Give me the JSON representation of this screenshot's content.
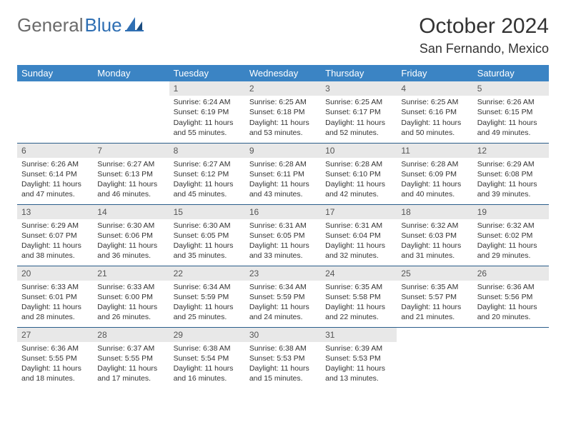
{
  "brand": {
    "part1": "General",
    "part2": "Blue"
  },
  "colors": {
    "header_bg": "#3b84c4",
    "header_text": "#ffffff",
    "daynum_bg": "#e8e8e8",
    "row_border": "#2a5d8a",
    "brand_gray": "#6b6b6b",
    "brand_blue": "#2f6fb3"
  },
  "title": "October 2024",
  "location": "San Fernando, Mexico",
  "weekdays": [
    "Sunday",
    "Monday",
    "Tuesday",
    "Wednesday",
    "Thursday",
    "Friday",
    "Saturday"
  ],
  "weeks": [
    [
      null,
      null,
      {
        "n": "1",
        "sr": "Sunrise: 6:24 AM",
        "ss": "Sunset: 6:19 PM",
        "d1": "Daylight: 11 hours",
        "d2": "and 55 minutes."
      },
      {
        "n": "2",
        "sr": "Sunrise: 6:25 AM",
        "ss": "Sunset: 6:18 PM",
        "d1": "Daylight: 11 hours",
        "d2": "and 53 minutes."
      },
      {
        "n": "3",
        "sr": "Sunrise: 6:25 AM",
        "ss": "Sunset: 6:17 PM",
        "d1": "Daylight: 11 hours",
        "d2": "and 52 minutes."
      },
      {
        "n": "4",
        "sr": "Sunrise: 6:25 AM",
        "ss": "Sunset: 6:16 PM",
        "d1": "Daylight: 11 hours",
        "d2": "and 50 minutes."
      },
      {
        "n": "5",
        "sr": "Sunrise: 6:26 AM",
        "ss": "Sunset: 6:15 PM",
        "d1": "Daylight: 11 hours",
        "d2": "and 49 minutes."
      }
    ],
    [
      {
        "n": "6",
        "sr": "Sunrise: 6:26 AM",
        "ss": "Sunset: 6:14 PM",
        "d1": "Daylight: 11 hours",
        "d2": "and 47 minutes."
      },
      {
        "n": "7",
        "sr": "Sunrise: 6:27 AM",
        "ss": "Sunset: 6:13 PM",
        "d1": "Daylight: 11 hours",
        "d2": "and 46 minutes."
      },
      {
        "n": "8",
        "sr": "Sunrise: 6:27 AM",
        "ss": "Sunset: 6:12 PM",
        "d1": "Daylight: 11 hours",
        "d2": "and 45 minutes."
      },
      {
        "n": "9",
        "sr": "Sunrise: 6:28 AM",
        "ss": "Sunset: 6:11 PM",
        "d1": "Daylight: 11 hours",
        "d2": "and 43 minutes."
      },
      {
        "n": "10",
        "sr": "Sunrise: 6:28 AM",
        "ss": "Sunset: 6:10 PM",
        "d1": "Daylight: 11 hours",
        "d2": "and 42 minutes."
      },
      {
        "n": "11",
        "sr": "Sunrise: 6:28 AM",
        "ss": "Sunset: 6:09 PM",
        "d1": "Daylight: 11 hours",
        "d2": "and 40 minutes."
      },
      {
        "n": "12",
        "sr": "Sunrise: 6:29 AM",
        "ss": "Sunset: 6:08 PM",
        "d1": "Daylight: 11 hours",
        "d2": "and 39 minutes."
      }
    ],
    [
      {
        "n": "13",
        "sr": "Sunrise: 6:29 AM",
        "ss": "Sunset: 6:07 PM",
        "d1": "Daylight: 11 hours",
        "d2": "and 38 minutes."
      },
      {
        "n": "14",
        "sr": "Sunrise: 6:30 AM",
        "ss": "Sunset: 6:06 PM",
        "d1": "Daylight: 11 hours",
        "d2": "and 36 minutes."
      },
      {
        "n": "15",
        "sr": "Sunrise: 6:30 AM",
        "ss": "Sunset: 6:05 PM",
        "d1": "Daylight: 11 hours",
        "d2": "and 35 minutes."
      },
      {
        "n": "16",
        "sr": "Sunrise: 6:31 AM",
        "ss": "Sunset: 6:05 PM",
        "d1": "Daylight: 11 hours",
        "d2": "and 33 minutes."
      },
      {
        "n": "17",
        "sr": "Sunrise: 6:31 AM",
        "ss": "Sunset: 6:04 PM",
        "d1": "Daylight: 11 hours",
        "d2": "and 32 minutes."
      },
      {
        "n": "18",
        "sr": "Sunrise: 6:32 AM",
        "ss": "Sunset: 6:03 PM",
        "d1": "Daylight: 11 hours",
        "d2": "and 31 minutes."
      },
      {
        "n": "19",
        "sr": "Sunrise: 6:32 AM",
        "ss": "Sunset: 6:02 PM",
        "d1": "Daylight: 11 hours",
        "d2": "and 29 minutes."
      }
    ],
    [
      {
        "n": "20",
        "sr": "Sunrise: 6:33 AM",
        "ss": "Sunset: 6:01 PM",
        "d1": "Daylight: 11 hours",
        "d2": "and 28 minutes."
      },
      {
        "n": "21",
        "sr": "Sunrise: 6:33 AM",
        "ss": "Sunset: 6:00 PM",
        "d1": "Daylight: 11 hours",
        "d2": "and 26 minutes."
      },
      {
        "n": "22",
        "sr": "Sunrise: 6:34 AM",
        "ss": "Sunset: 5:59 PM",
        "d1": "Daylight: 11 hours",
        "d2": "and 25 minutes."
      },
      {
        "n": "23",
        "sr": "Sunrise: 6:34 AM",
        "ss": "Sunset: 5:59 PM",
        "d1": "Daylight: 11 hours",
        "d2": "and 24 minutes."
      },
      {
        "n": "24",
        "sr": "Sunrise: 6:35 AM",
        "ss": "Sunset: 5:58 PM",
        "d1": "Daylight: 11 hours",
        "d2": "and 22 minutes."
      },
      {
        "n": "25",
        "sr": "Sunrise: 6:35 AM",
        "ss": "Sunset: 5:57 PM",
        "d1": "Daylight: 11 hours",
        "d2": "and 21 minutes."
      },
      {
        "n": "26",
        "sr": "Sunrise: 6:36 AM",
        "ss": "Sunset: 5:56 PM",
        "d1": "Daylight: 11 hours",
        "d2": "and 20 minutes."
      }
    ],
    [
      {
        "n": "27",
        "sr": "Sunrise: 6:36 AM",
        "ss": "Sunset: 5:55 PM",
        "d1": "Daylight: 11 hours",
        "d2": "and 18 minutes."
      },
      {
        "n": "28",
        "sr": "Sunrise: 6:37 AM",
        "ss": "Sunset: 5:55 PM",
        "d1": "Daylight: 11 hours",
        "d2": "and 17 minutes."
      },
      {
        "n": "29",
        "sr": "Sunrise: 6:38 AM",
        "ss": "Sunset: 5:54 PM",
        "d1": "Daylight: 11 hours",
        "d2": "and 16 minutes."
      },
      {
        "n": "30",
        "sr": "Sunrise: 6:38 AM",
        "ss": "Sunset: 5:53 PM",
        "d1": "Daylight: 11 hours",
        "d2": "and 15 minutes."
      },
      {
        "n": "31",
        "sr": "Sunrise: 6:39 AM",
        "ss": "Sunset: 5:53 PM",
        "d1": "Daylight: 11 hours",
        "d2": "and 13 minutes."
      },
      null,
      null
    ]
  ]
}
